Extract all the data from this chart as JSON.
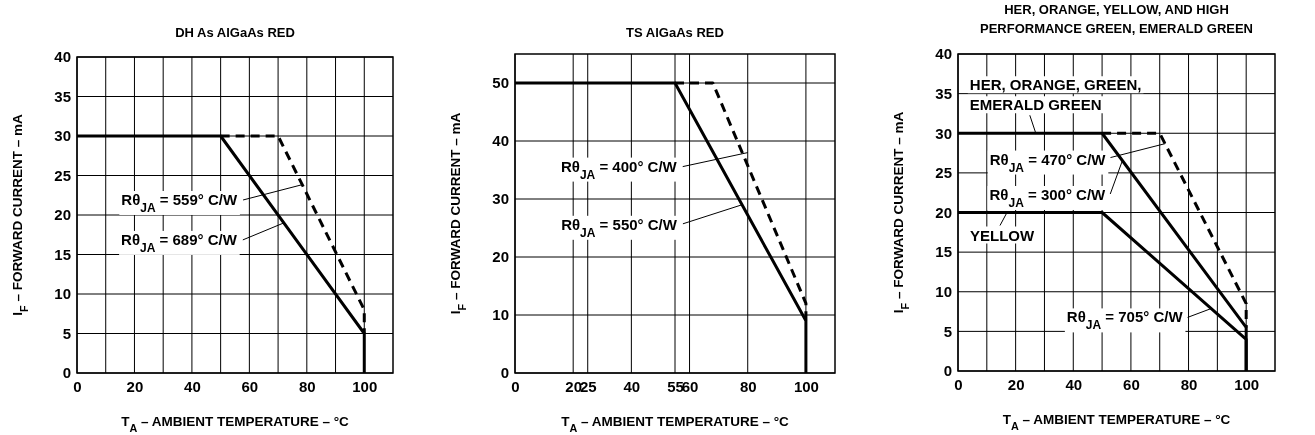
{
  "chart_data": [
    {
      "type": "line",
      "title": "DH As AlGaAs RED",
      "xlabel": "T$_{A}$ – AMBIENT TEMPERATURE – °C",
      "ylabel": "I$_{F}$ – FORWARD CURRENT – mA",
      "xlim": [
        0,
        110
      ],
      "ylim": [
        0,
        40
      ],
      "xticks": [
        0,
        {
          "value": 10,
          "label": null
        },
        20,
        {
          "value": 30,
          "label": null
        },
        40,
        {
          "value": 50,
          "label": null
        },
        60,
        {
          "value": 70,
          "label": null
        },
        80,
        {
          "value": 90,
          "label": null
        },
        100
      ],
      "yticks": [
        0,
        5,
        10,
        15,
        20,
        25,
        30,
        35,
        40
      ],
      "grid": true,
      "marker": "none",
      "series": [
        {
          "color": "#000000",
          "line_style": "dashed",
          "x": [
            50,
            70,
            100,
            100
          ],
          "values": [
            30,
            30,
            8,
            5
          ]
        },
        {
          "color": "#000000",
          "line_style": "solid",
          "x": [
            0,
            50,
            100,
            100
          ],
          "values": [
            30,
            30,
            5,
            0
          ]
        }
      ],
      "annotations": [
        {
          "text": "Rθ$_{JA}$ = 559° C/W",
          "x": 78,
          "y": 23.8
        },
        {
          "text": "Rθ$_{JA}$ = 689° C/W",
          "x": 72,
          "y": 19
        }
      ]
    },
    {
      "type": "line",
      "title": "TS AlGaAs RED",
      "xlabel": "T$_{A}$ – AMBIENT TEMPERATURE – °C",
      "ylabel": "I$_{F}$ – FORWARD CURRENT – mA",
      "xlim": [
        0,
        110
      ],
      "ylim": [
        0,
        55
      ],
      "xticks": [
        0,
        20,
        25,
        40,
        55,
        60,
        80,
        100
      ],
      "yticks": [
        0,
        10,
        20,
        30,
        40,
        50
      ],
      "grid": true,
      "marker": "none",
      "series": [
        {
          "color": "#000000",
          "line_style": "dashed",
          "x": [
            55,
            68,
            100,
            100
          ],
          "values": [
            50,
            50,
            12,
            9
          ]
        },
        {
          "color": "#000000",
          "line_style": "solid",
          "x": [
            0,
            55,
            100,
            100
          ],
          "values": [
            50,
            50,
            9,
            0
          ]
        }
      ],
      "annotations": [
        {
          "text": "Rθ$_{JA}$ = 400° C/W",
          "x": 80,
          "y": 38
        },
        {
          "text": "Rθ$_{JA}$ = 550° C/W",
          "x": 78,
          "y": 29
        }
      ]
    },
    {
      "type": "line",
      "title": "HER, ORANGE, YELLOW, AND HIGH PERFORMANCE GREEN, EMERALD GREEN",
      "xlabel": "T$_{A}$ – AMBIENT TEMPERATURE – °C",
      "ylabel": "I$_{F}$ – FORWARD CURRENT – mA",
      "xlim": [
        0,
        110
      ],
      "ylim": [
        0,
        40
      ],
      "xticks": [
        0,
        {
          "value": 10,
          "label": null
        },
        20,
        {
          "value": 30,
          "label": null
        },
        40,
        {
          "value": 50,
          "label": null
        },
        60,
        {
          "value": 70,
          "label": null
        },
        80,
        {
          "value": 90,
          "label": null
        },
        100
      ],
      "yticks": [
        0,
        5,
        10,
        15,
        20,
        25,
        30,
        35,
        40
      ],
      "grid": true,
      "marker": "none",
      "series": [
        {
          "color": "#000000",
          "line_style": "dashed",
          "x": [
            50,
            70,
            100,
            100
          ],
          "values": [
            30,
            30,
            8.5,
            5.5
          ]
        },
        {
          "color": "#000000",
          "line_style": "solid",
          "x": [
            0,
            50,
            100,
            100
          ],
          "values": [
            30,
            30,
            5.5,
            0
          ]
        },
        {
          "color": "#000000",
          "line_style": "solid",
          "x": [
            0,
            50,
            100,
            100
          ],
          "values": [
            20,
            20,
            4,
            0
          ]
        }
      ],
      "annotations": [
        {
          "text": "HER, ORANGE, GREEN, EMERALD GREEN",
          "x": 27,
          "y": 30
        },
        {
          "text": "Rθ$_{JA}$ = 470° C/W",
          "x": 72,
          "y": 28.7
        },
        {
          "text": "Rθ$_{JA}$ = 300° C/W",
          "x": 57,
          "y": 26.5
        },
        {
          "text": "YELLOW",
          "x": 17,
          "y": 20
        },
        {
          "text": "Rθ$_{JA}$ = 705° C/W",
          "x": 88,
          "y": 7.9
        }
      ]
    }
  ]
}
